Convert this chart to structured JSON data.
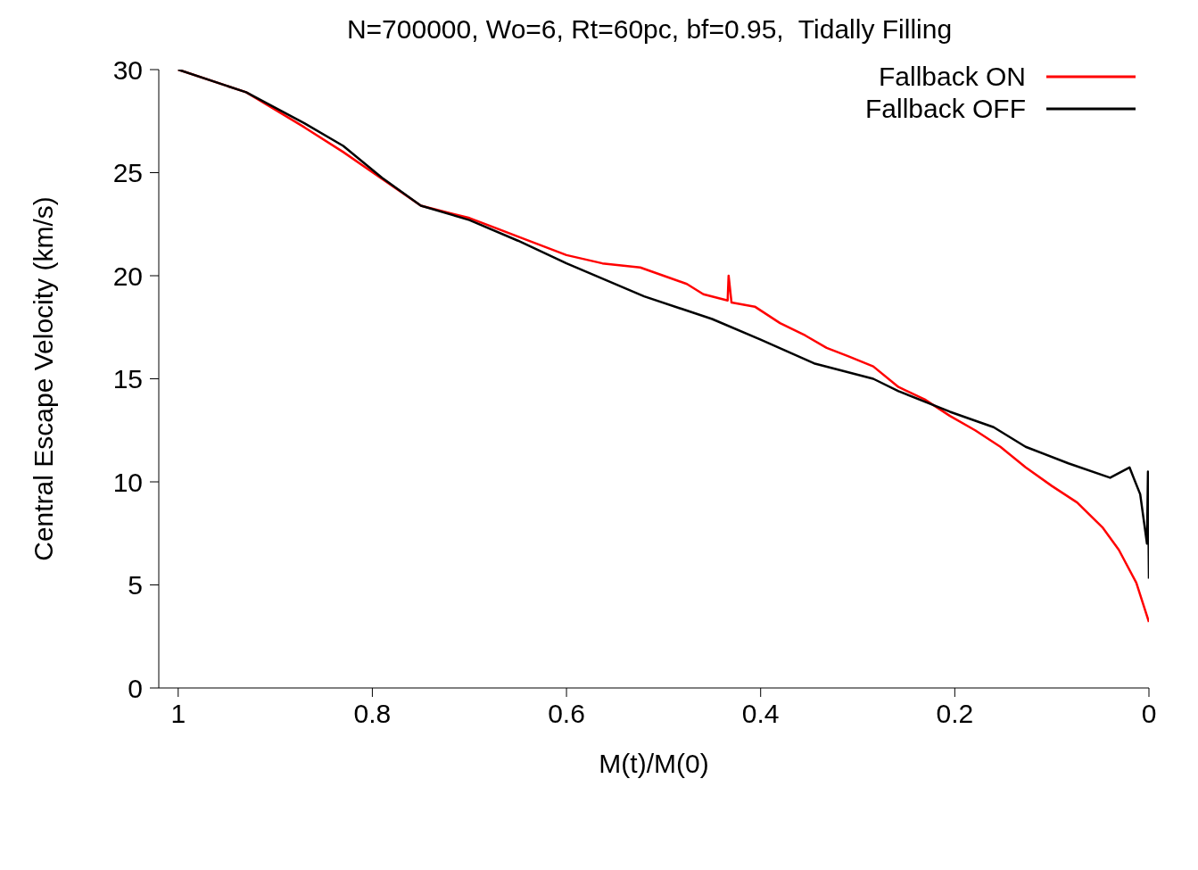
{
  "chart_data": {
    "type": "line",
    "title": "N=700000, Wo=6, Rt=60pc, bf=0.95,  Tidally Filling",
    "xlabel": "M(t)/M(0)",
    "ylabel": "Central Escape Velocity (km/s)",
    "xlim": [
      1.02,
      0
    ],
    "xticks": [
      1,
      0.8,
      0.6,
      0.4,
      0.2,
      0
    ],
    "ylim": [
      0,
      30
    ],
    "yticks": [
      0,
      5,
      10,
      15,
      20,
      25,
      30
    ],
    "legend": "top right",
    "marker": "none",
    "line_style": "solid",
    "series": [
      {
        "name": "Fallback ON",
        "color": "#ff0000",
        "x": [
          1,
          0.93,
          0.87,
          0.83,
          0.79,
          0.75,
          0.7,
          0.65,
          0.6,
          0.563,
          0.524,
          0.5,
          0.476,
          0.459,
          0.434,
          0.433,
          0.43,
          0.406,
          0.38,
          0.354,
          0.332,
          0.31,
          0.284,
          0.258,
          0.231,
          0.205,
          0.179,
          0.153,
          0.127,
          0.1,
          0.074,
          0.048,
          0.031,
          0.013,
          0
        ],
        "values": [
          30,
          28.9,
          27.2,
          26.0,
          24.7,
          23.4,
          22.8,
          21.9,
          21.0,
          20.6,
          20.4,
          20.0,
          19.6,
          19.1,
          18.8,
          20.0,
          18.7,
          18.5,
          17.7,
          17.1,
          16.5,
          16.1,
          15.6,
          14.6,
          14.0,
          13.2,
          12.5,
          11.7,
          10.7,
          9.8,
          9.0,
          7.8,
          6.7,
          5.1,
          3.2
        ]
      },
      {
        "name": "Fallback OFF",
        "color": "#000000",
        "x": [
          1,
          0.93,
          0.87,
          0.83,
          0.79,
          0.75,
          0.7,
          0.65,
          0.6,
          0.52,
          0.45,
          0.4,
          0.345,
          0.284,
          0.258,
          0.205,
          0.16,
          0.127,
          0.083,
          0.04,
          0.02,
          0.009,
          0.002,
          0.001,
          0
        ],
        "values": [
          30,
          28.9,
          27.4,
          26.3,
          24.75,
          23.4,
          22.7,
          21.7,
          20.6,
          19.0,
          17.9,
          16.9,
          15.75,
          15.0,
          14.4,
          13.4,
          12.65,
          11.7,
          10.9,
          10.2,
          10.7,
          9.4,
          7.0,
          10.5,
          5.3
        ]
      }
    ]
  }
}
